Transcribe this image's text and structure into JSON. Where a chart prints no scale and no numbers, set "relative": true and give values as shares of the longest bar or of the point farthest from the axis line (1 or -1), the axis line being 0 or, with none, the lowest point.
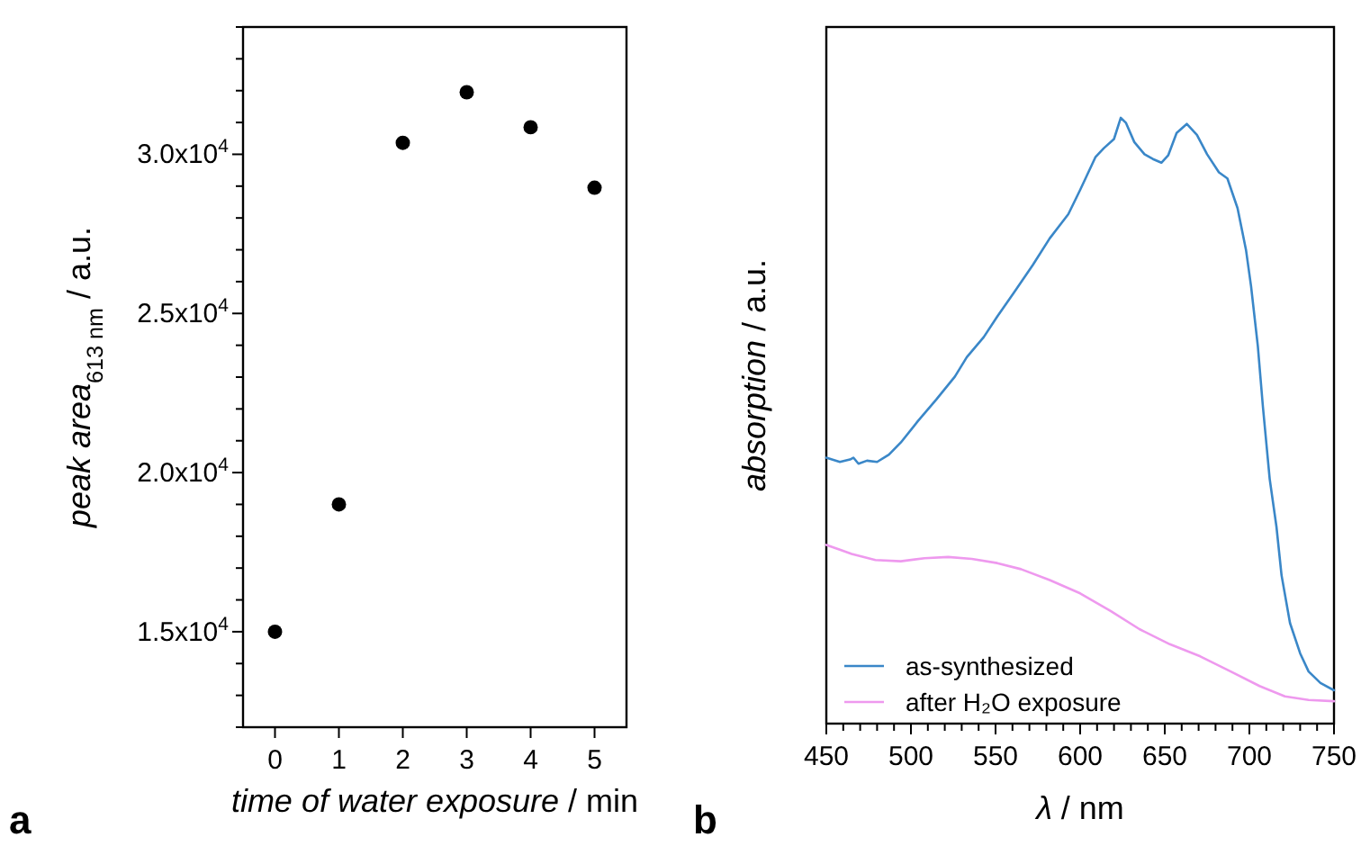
{
  "chart_data": [
    {
      "type": "scatter",
      "xlabel": "time of water exposure / min",
      "ylabel": "peak area$_{613 nm}$ / a.u.",
      "marker": "circle",
      "grid": false,
      "legend": false,
      "x": [
        0,
        1,
        2,
        3,
        4,
        5
      ],
      "series": [
        {
          "color": "#000000",
          "values": [
            15000,
            19000,
            30360,
            31950,
            30850,
            28950
          ]
        }
      ],
      "xlim": [
        -0.5,
        5.5
      ],
      "xticks": [
        0,
        1,
        2,
        3,
        4,
        5
      ],
      "ylim": [
        12000,
        34000
      ],
      "yticks": [
        {
          "value": 12000,
          "label": null
        },
        {
          "value": 13000,
          "label": null
        },
        {
          "value": 14000,
          "label": null
        },
        {
          "value": 15000,
          "label": "1.5x10$^{4}$"
        },
        {
          "value": 16000,
          "label": null
        },
        {
          "value": 17000,
          "label": null
        },
        {
          "value": 18000,
          "label": null
        },
        {
          "value": 19000,
          "label": null
        },
        {
          "value": 20000,
          "label": "2.0x10$^{4}$"
        },
        {
          "value": 21000,
          "label": null
        },
        {
          "value": 22000,
          "label": null
        },
        {
          "value": 23000,
          "label": null
        },
        {
          "value": 24000,
          "label": null
        },
        {
          "value": 25000,
          "label": "2.5x10$^{4}$"
        },
        {
          "value": 26000,
          "label": null
        },
        {
          "value": 27000,
          "label": null
        },
        {
          "value": 28000,
          "label": null
        },
        {
          "value": 29000,
          "label": null
        },
        {
          "value": 30000,
          "label": "3.0x10$^{4}$"
        },
        {
          "value": 31000,
          "label": null
        },
        {
          "value": 32000,
          "label": null
        },
        {
          "value": 33000,
          "label": null
        },
        {
          "value": 34000,
          "label": null
        }
      ],
      "annotations": [
        "a"
      ]
    },
    {
      "type": "line",
      "xlabel": "λ / nm",
      "ylabel": "absorption / a.u.",
      "relative": true,
      "line_style": "solid",
      "grid": false,
      "legend": "bottom left",
      "series": [
        {
          "name": "as-synthesized",
          "color": "#3a87c8",
          "x": [
            450,
            458,
            464,
            466,
            469,
            474,
            480,
            487,
            494,
            504,
            515,
            526,
            533,
            543,
            551,
            561,
            572,
            582,
            593,
            600,
            609,
            614,
            620,
            624,
            627,
            632,
            638,
            643,
            648,
            652,
            657,
            663,
            669,
            675,
            682,
            687,
            693,
            698,
            701,
            705,
            708,
            712,
            716,
            719,
            724,
            730,
            735,
            742,
            750
          ],
          "values": [
            0.439,
            0.432,
            0.436,
            0.439,
            0.429,
            0.434,
            0.432,
            0.444,
            0.464,
            0.499,
            0.535,
            0.573,
            0.605,
            0.638,
            0.672,
            0.712,
            0.757,
            0.801,
            0.841,
            0.881,
            0.935,
            0.95,
            0.965,
            1,
            0.992,
            0.96,
            0.94,
            0.932,
            0.926,
            0.938,
            0.975,
            0.99,
            0.972,
            0.94,
            0.91,
            0.9,
            0.851,
            0.782,
            0.722,
            0.623,
            0.523,
            0.404,
            0.325,
            0.245,
            0.166,
            0.116,
            0.086,
            0.067,
            0.055
          ]
        },
        {
          "name": "after H₂O exposure",
          "color": "#ee99ee",
          "x": [
            450,
            458,
            465,
            479,
            494,
            508,
            522,
            536,
            551,
            565,
            582,
            600,
            618,
            635,
            653,
            671,
            689,
            706,
            721,
            735,
            750
          ],
          "values": [
            0.295,
            0.287,
            0.28,
            0.27,
            0.268,
            0.273,
            0.275,
            0.272,
            0.265,
            0.255,
            0.237,
            0.215,
            0.186,
            0.156,
            0.131,
            0.111,
            0.086,
            0.062,
            0.045,
            0.039,
            0.037
          ]
        }
      ],
      "xlim": [
        450,
        750
      ],
      "xticks": [
        450,
        {
          "value": 460,
          "label": null
        },
        {
          "value": 470,
          "label": null
        },
        {
          "value": 480,
          "label": null
        },
        {
          "value": 490,
          "label": null
        },
        500,
        {
          "value": 510,
          "label": null
        },
        {
          "value": 520,
          "label": null
        },
        {
          "value": 530,
          "label": null
        },
        {
          "value": 540,
          "label": null
        },
        550,
        {
          "value": 560,
          "label": null
        },
        {
          "value": 570,
          "label": null
        },
        {
          "value": 580,
          "label": null
        },
        {
          "value": 590,
          "label": null
        },
        600,
        {
          "value": 610,
          "label": null
        },
        {
          "value": 620,
          "label": null
        },
        {
          "value": 630,
          "label": null
        },
        {
          "value": 640,
          "label": null
        },
        650,
        {
          "value": 660,
          "label": null
        },
        {
          "value": 670,
          "label": null
        },
        {
          "value": 680,
          "label": null
        },
        {
          "value": 690,
          "label": null
        },
        700,
        {
          "value": 710,
          "label": null
        },
        {
          "value": 720,
          "label": null
        },
        {
          "value": 730,
          "label": null
        },
        {
          "value": 740,
          "label": null
        },
        750
      ],
      "annotations": [
        "b"
      ]
    }
  ]
}
